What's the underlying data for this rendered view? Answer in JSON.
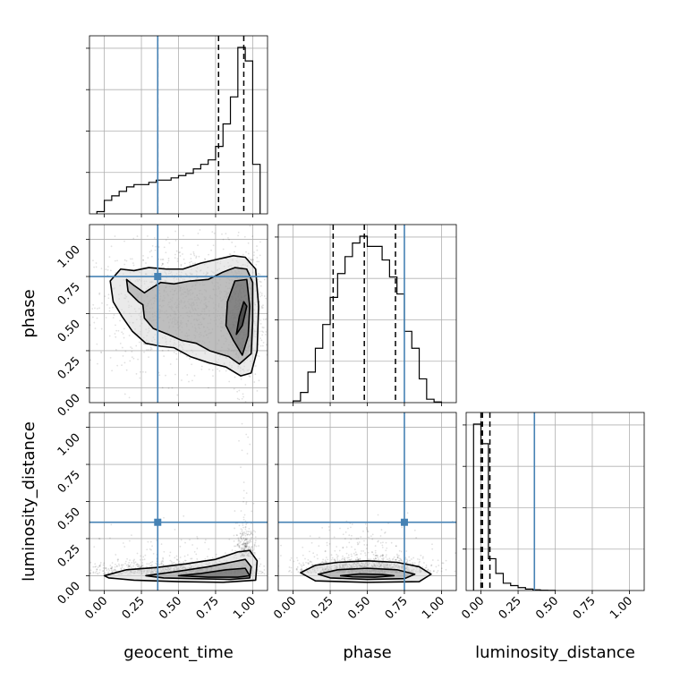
{
  "chart_data": {
    "type": "corner",
    "parameters": [
      "geocent_time",
      "phase",
      "luminosity_distance"
    ],
    "axis_range": [
      -0.1,
      1.1
    ],
    "ticks": [
      0.0,
      0.25,
      0.5,
      0.75,
      1.0
    ],
    "tick_labels": [
      "0.00",
      "0.25",
      "0.50",
      "0.75",
      "1.00"
    ],
    "grid": true,
    "truth_color": "#4682b4",
    "truths": {
      "geocent_time": 0.36,
      "phase": 0.75,
      "luminosity_distance": 0.36
    },
    "histograms": [
      {
        "parameter": "geocent_time",
        "bin_edges": [
          -0.05,
          0.0,
          0.05,
          0.1,
          0.15,
          0.2,
          0.25,
          0.3,
          0.35,
          0.4,
          0.45,
          0.5,
          0.55,
          0.6,
          0.65,
          0.7,
          0.75,
          0.8,
          0.85,
          0.9,
          0.95,
          1.0,
          1.05
        ],
        "counts": [
          0.5,
          3,
          4,
          5,
          6,
          6.5,
          6.5,
          7,
          7.5,
          7.5,
          8,
          8.5,
          9,
          10,
          11,
          12,
          15,
          20,
          26,
          37,
          34,
          11
        ],
        "quantiles": [
          0.36,
          0.77,
          0.94
        ]
      },
      {
        "parameter": "phase",
        "bin_edges": [
          0.0,
          0.05,
          0.1,
          0.15,
          0.2,
          0.25,
          0.3,
          0.35,
          0.4,
          0.45,
          0.5,
          0.55,
          0.6,
          0.65,
          0.7,
          0.75,
          0.8,
          0.85,
          0.9,
          0.95,
          1.0
        ],
        "counts": [
          0.5,
          3,
          9,
          16,
          23,
          31,
          38,
          43,
          47,
          49,
          46,
          46,
          42,
          37,
          32,
          21,
          16,
          7,
          1,
          0.2
        ],
        "quantiles": [
          0.27,
          0.48,
          0.69
        ]
      },
      {
        "parameter": "luminosity_distance",
        "bin_edges": [
          -0.05,
          0.0,
          0.05,
          0.1,
          0.15,
          0.2,
          0.25,
          0.3,
          0.35,
          0.4,
          0.45,
          0.5
        ],
        "counts": [
          68,
          60,
          13,
          7,
          3,
          2,
          1.2,
          0.6,
          0.3,
          0.1,
          0.05
        ],
        "quantiles": [
          0.0,
          0.01,
          0.06
        ]
      }
    ],
    "contour_panels": [
      {
        "x": "geocent_time",
        "y": "phase",
        "levels": [
          [
            [
              0.93,
              0.42
            ],
            [
              0.96,
              0.55
            ],
            [
              0.94,
              0.58
            ],
            [
              0.91,
              0.48
            ],
            [
              0.89,
              0.36
            ]
          ],
          [
            [
              0.87,
              0.32
            ],
            [
              0.93,
              0.22
            ],
            [
              0.97,
              0.35
            ],
            [
              0.98,
              0.55
            ],
            [
              0.96,
              0.73
            ],
            [
              0.88,
              0.72
            ],
            [
              0.83,
              0.58
            ],
            [
              0.82,
              0.42
            ]
          ],
          [
            [
              0.15,
              0.73
            ],
            [
              0.2,
              0.69
            ],
            [
              0.27,
              0.64
            ],
            [
              0.3,
              0.66
            ],
            [
              0.38,
              0.71
            ],
            [
              0.47,
              0.7
            ],
            [
              0.58,
              0.72
            ],
            [
              0.7,
              0.73
            ],
            [
              0.8,
              0.78
            ],
            [
              0.88,
              0.81
            ],
            [
              0.96,
              0.8
            ],
            [
              1.0,
              0.71
            ],
            [
              1.0,
              0.45
            ],
            [
              0.99,
              0.23
            ],
            [
              0.91,
              0.16
            ],
            [
              0.84,
              0.21
            ],
            [
              0.71,
              0.25
            ],
            [
              0.62,
              0.3
            ],
            [
              0.52,
              0.32
            ],
            [
              0.43,
              0.36
            ],
            [
              0.33,
              0.4
            ],
            [
              0.27,
              0.47
            ],
            [
              0.26,
              0.56
            ],
            [
              0.23,
              0.58
            ],
            [
              0.16,
              0.65
            ]
          ],
          [
            [
              0.04,
              0.72
            ],
            [
              0.11,
              0.8
            ],
            [
              0.2,
              0.79
            ],
            [
              0.3,
              0.81
            ],
            [
              0.42,
              0.8
            ],
            [
              0.53,
              0.8
            ],
            [
              0.65,
              0.84
            ],
            [
              0.78,
              0.87
            ],
            [
              0.87,
              0.89
            ],
            [
              0.95,
              0.88
            ],
            [
              1.02,
              0.8
            ],
            [
              1.04,
              0.55
            ],
            [
              1.03,
              0.25
            ],
            [
              0.99,
              0.1
            ],
            [
              0.92,
              0.08
            ],
            [
              0.82,
              0.14
            ],
            [
              0.7,
              0.17
            ],
            [
              0.58,
              0.21
            ],
            [
              0.47,
              0.27
            ],
            [
              0.38,
              0.28
            ],
            [
              0.28,
              0.3
            ],
            [
              0.19,
              0.38
            ],
            [
              0.12,
              0.48
            ],
            [
              0.06,
              0.58
            ]
          ]
        ],
        "points": [
          {
            "cx": 0.55,
            "cy": 0.55,
            "sx": 0.3,
            "sy": 0.21,
            "n": 1200
          },
          {
            "cx": 0.93,
            "cy": 0.45,
            "sx": 0.06,
            "sy": 0.22,
            "n": 500
          }
        ]
      },
      {
        "x": "geocent_time",
        "y": "luminosity_distance",
        "levels": [
          [
            [
              0.5,
              0.0
            ],
            [
              0.65,
              0.015
            ],
            [
              0.82,
              0.04
            ],
            [
              0.95,
              0.05
            ],
            [
              0.98,
              0.0
            ],
            [
              0.9,
              -0.01
            ],
            [
              0.7,
              -0.01
            ]
          ],
          [
            [
              0.28,
              0.0
            ],
            [
              0.5,
              0.03
            ],
            [
              0.7,
              0.06
            ],
            [
              0.85,
              0.09
            ],
            [
              0.95,
              0.11
            ],
            [
              0.99,
              0.06
            ],
            [
              0.98,
              -0.015
            ],
            [
              0.85,
              -0.025
            ],
            [
              0.6,
              -0.02
            ],
            [
              0.4,
              -0.015
            ]
          ],
          [
            [
              0.0,
              0.0
            ],
            [
              0.15,
              0.04
            ],
            [
              0.35,
              0.055
            ],
            [
              0.55,
              0.08
            ],
            [
              0.75,
              0.11
            ],
            [
              0.9,
              0.16
            ],
            [
              0.98,
              0.17
            ],
            [
              1.03,
              0.1
            ],
            [
              1.02,
              -0.03
            ],
            [
              0.8,
              -0.045
            ],
            [
              0.5,
              -0.04
            ],
            [
              0.2,
              -0.03
            ],
            [
              0.03,
              -0.015
            ]
          ]
        ],
        "points": [
          {
            "cx": 0.5,
            "cy": 0.06,
            "sx": 0.3,
            "sy": 0.07,
            "n": 1000
          },
          {
            "cx": 0.95,
            "cy": 0.18,
            "sx": 0.03,
            "sy": 0.16,
            "n": 250
          }
        ]
      },
      {
        "x": "phase",
        "y": "luminosity_distance",
        "levels": [
          [
            [
              0.32,
              0.0
            ],
            [
              0.45,
              0.012
            ],
            [
              0.6,
              0.008
            ],
            [
              0.68,
              0.0
            ],
            [
              0.55,
              -0.01
            ],
            [
              0.4,
              -0.008
            ]
          ],
          [
            [
              0.17,
              0.01
            ],
            [
              0.3,
              0.04
            ],
            [
              0.5,
              0.05
            ],
            [
              0.7,
              0.04
            ],
            [
              0.82,
              0.01
            ],
            [
              0.75,
              -0.02
            ],
            [
              0.5,
              -0.025
            ],
            [
              0.25,
              -0.015
            ]
          ],
          [
            [
              0.05,
              0.02
            ],
            [
              0.15,
              0.07
            ],
            [
              0.3,
              0.09
            ],
            [
              0.5,
              0.1
            ],
            [
              0.7,
              0.09
            ],
            [
              0.85,
              0.06
            ],
            [
              0.93,
              0.01
            ],
            [
              0.85,
              -0.04
            ],
            [
              0.5,
              -0.045
            ],
            [
              0.15,
              -0.035
            ]
          ]
        ],
        "points": [
          {
            "cx": 0.48,
            "cy": 0.07,
            "sx": 0.21,
            "sy": 0.08,
            "n": 1300
          }
        ]
      }
    ]
  }
}
